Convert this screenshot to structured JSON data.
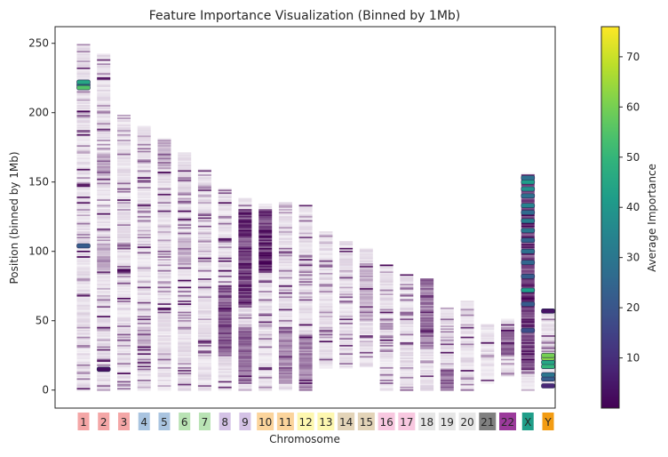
{
  "chart_data": {
    "type": "heatmap",
    "title": "Feature Importance Visualization (Binned by 1Mb)",
    "xlabel": "Chromosome",
    "ylabel": "Position (binned by 1Mb)",
    "ylim": [
      -13,
      262
    ],
    "yticks": [
      0,
      50,
      100,
      150,
      200,
      250
    ],
    "grid": false,
    "colorbar": {
      "label": "Average Importance",
      "range": [
        0,
        76
      ],
      "ticks": [
        10,
        20,
        30,
        40,
        50,
        60,
        70
      ],
      "colormap": "viridis"
    },
    "chromosomes": [
      {
        "label": "1",
        "color": "#f4a6a6",
        "start": 0,
        "end": 249,
        "hot": [
          [
            104,
            22
          ],
          [
            220,
            30
          ],
          [
            218,
            55
          ],
          [
            222,
            45
          ]
        ],
        "dense": []
      },
      {
        "label": "2",
        "color": "#f4a6a6",
        "start": 0,
        "end": 242,
        "hot": [
          [
            15,
            3
          ]
        ],
        "dense": [
          [
            85,
            105,
            0.35
          ],
          [
            155,
            170,
            0.35
          ]
        ]
      },
      {
        "label": "3",
        "color": "#f4a6a6",
        "start": 0,
        "end": 198,
        "hot": [],
        "dense": []
      },
      {
        "label": "4",
        "color": "#a9c4e0",
        "start": 0,
        "end": 190,
        "hot": [],
        "dense": [
          [
            30,
            45,
            0.3
          ]
        ]
      },
      {
        "label": "5",
        "color": "#a9c4e0",
        "start": 0,
        "end": 181,
        "hot": [],
        "dense": [
          [
            160,
            180,
            0.3
          ]
        ]
      },
      {
        "label": "6",
        "color": "#b9e3b4",
        "start": 0,
        "end": 171,
        "hot": [],
        "dense": [
          [
            90,
            110,
            0.3
          ]
        ]
      },
      {
        "label": "7",
        "color": "#b9e3b4",
        "start": 0,
        "end": 159,
        "hot": [],
        "dense": []
      },
      {
        "label": "8",
        "color": "#d4c2e6",
        "start": 0,
        "end": 145,
        "hot": [],
        "dense": [
          [
            25,
            75,
            0.7
          ]
        ]
      },
      {
        "label": "9",
        "color": "#d4c2e6",
        "start": 0,
        "end": 138,
        "hot": [],
        "dense": [
          [
            60,
            130,
            0.85
          ],
          [
            5,
            45,
            0.6
          ]
        ]
      },
      {
        "label": "10",
        "color": "#fbd49c",
        "start": 0,
        "end": 134,
        "hot": [],
        "dense": [
          [
            85,
            130,
            0.9
          ]
        ]
      },
      {
        "label": "11",
        "color": "#fbd49c",
        "start": 0,
        "end": 135,
        "hot": [],
        "dense": [
          [
            5,
            45,
            0.45
          ]
        ]
      },
      {
        "label": "12",
        "color": "#fdf7b0",
        "start": 0,
        "end": 133,
        "hot": [],
        "dense": [
          [
            0,
            40,
            0.5
          ]
        ]
      },
      {
        "label": "13",
        "color": "#fdf7b0",
        "start": 16,
        "end": 114,
        "hot": [],
        "dense": []
      },
      {
        "label": "14",
        "color": "#e3d4b8",
        "start": 16,
        "end": 107,
        "hot": [],
        "dense": []
      },
      {
        "label": "15",
        "color": "#e3d4b8",
        "start": 17,
        "end": 102,
        "hot": [],
        "dense": [
          [
            50,
            90,
            0.3
          ]
        ]
      },
      {
        "label": "16",
        "color": "#f8c8e0",
        "start": 0,
        "end": 90,
        "hot": [],
        "dense": []
      },
      {
        "label": "17",
        "color": "#f8c8e0",
        "start": 0,
        "end": 83,
        "hot": [],
        "dense": []
      },
      {
        "label": "18",
        "color": "#e6e6e6",
        "start": 0,
        "end": 80,
        "hot": [],
        "dense": [
          [
            30,
            80,
            0.55
          ]
        ]
      },
      {
        "label": "19",
        "color": "#e6e6e6",
        "start": 0,
        "end": 59,
        "hot": [],
        "dense": [
          [
            0,
            15,
            0.6
          ]
        ]
      },
      {
        "label": "20",
        "color": "#e6e6e6",
        "start": 0,
        "end": 64,
        "hot": [],
        "dense": []
      },
      {
        "label": "21",
        "color": "#808080",
        "start": 5,
        "end": 47,
        "hot": [],
        "dense": []
      },
      {
        "label": "22",
        "color": "#9b3a9b",
        "start": 10,
        "end": 51,
        "hot": [],
        "dense": [
          [
            25,
            45,
            0.6
          ]
        ]
      },
      {
        "label": "X",
        "color": "#1f9e89",
        "start": 0,
        "end": 156,
        "hot": [
          [
            43,
            18
          ],
          [
            62,
            22
          ],
          [
            72,
            42
          ],
          [
            82,
            22
          ],
          [
            92,
            25
          ],
          [
            100,
            28
          ],
          [
            108,
            24
          ],
          [
            115,
            30
          ],
          [
            122,
            32
          ],
          [
            128,
            26
          ],
          [
            133,
            34
          ],
          [
            140,
            28
          ],
          [
            145,
            38
          ],
          [
            150,
            42
          ],
          [
            153,
            28
          ]
        ],
        "dense": [
          [
            15,
            155,
            0.85
          ]
        ]
      },
      {
        "label": "Y",
        "color": "#f39c12",
        "start": 2,
        "end": 57,
        "hot": [
          [
            57,
            4
          ],
          [
            3,
            8
          ],
          [
            8,
            22
          ],
          [
            11,
            30
          ],
          [
            17,
            50
          ],
          [
            20,
            45
          ],
          [
            23,
            62
          ],
          [
            25,
            60
          ]
        ],
        "dense": []
      }
    ]
  }
}
